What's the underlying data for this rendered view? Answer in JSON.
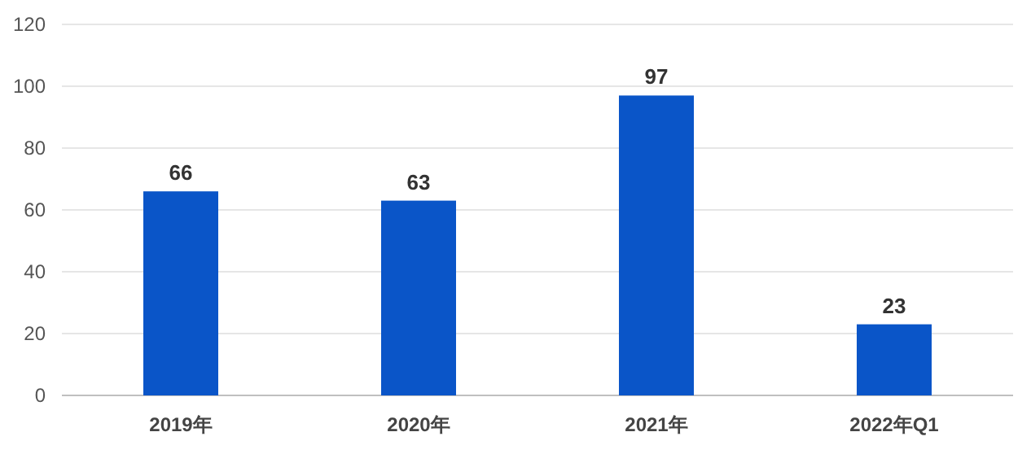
{
  "chart_data": {
    "type": "bar",
    "categories": [
      "2019年",
      "2020年",
      "2021年",
      "2022年Q1"
    ],
    "values": [
      66,
      63,
      97,
      23
    ],
    "color": "#0a55c8",
    "ylim": [
      0,
      120
    ],
    "yticks": [
      0,
      20,
      40,
      60,
      80,
      100,
      120
    ],
    "grid": "y",
    "data_labels": true
  }
}
